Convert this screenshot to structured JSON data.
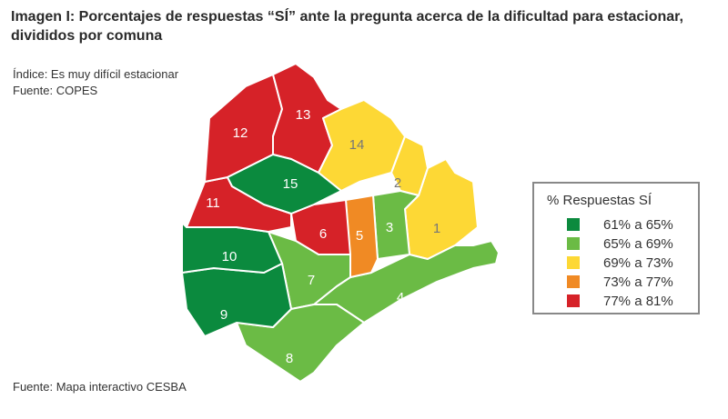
{
  "title": "Imagen I: Porcentajes de respuestas “SÍ” ante la pregunta acerca de la dificultad para estacionar, divididos por comuna",
  "index_note": "Índice: Es muy difícil estacionar",
  "source_top": "Fuente: COPES",
  "source_bottom": "Fuente: Mapa interactivo CESBA",
  "legend": {
    "title": "% Respuestas SÍ",
    "items": [
      {
        "label": "61% a 65%",
        "color": "#0b8a3e"
      },
      {
        "label": "65% a 69%",
        "color": "#6bbb45"
      },
      {
        "label": "69% a 73%",
        "color": "#fdd835"
      },
      {
        "label": "73% a 77%",
        "color": "#f08a24"
      },
      {
        "label": "77% a 81%",
        "color": "#d62228"
      }
    ]
  },
  "comunas": [
    {
      "id": "1",
      "category": 2
    },
    {
      "id": "2",
      "category": 2
    },
    {
      "id": "3",
      "category": 1
    },
    {
      "id": "4",
      "category": 1
    },
    {
      "id": "5",
      "category": 3
    },
    {
      "id": "6",
      "category": 4
    },
    {
      "id": "7",
      "category": 1
    },
    {
      "id": "8",
      "category": 1
    },
    {
      "id": "9",
      "category": 0
    },
    {
      "id": "10",
      "category": 0
    },
    {
      "id": "11",
      "category": 4
    },
    {
      "id": "12",
      "category": 4
    },
    {
      "id": "13",
      "category": 4
    },
    {
      "id": "14",
      "category": 2
    },
    {
      "id": "15",
      "category": 0
    }
  ]
}
